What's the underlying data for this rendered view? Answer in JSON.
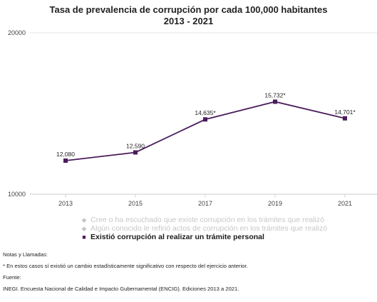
{
  "chart_data": {
    "type": "line",
    "title": "Tasa de prevalencia de corrupción por cada 100,000 habitantes",
    "subtitle": "2013 - 2021",
    "categories": [
      "2013",
      "2015",
      "2017",
      "2019",
      "2021"
    ],
    "series": [
      {
        "name": "Existió corrupción al realizar un trámite personal",
        "color": "#4b1c5c",
        "values": [
          12080,
          12590,
          14635,
          15732,
          14701
        ],
        "labels": [
          "12,080",
          "12,590",
          "14,635*",
          "15,732*",
          "14,701*"
        ]
      }
    ],
    "ylim": [
      10000,
      20000
    ],
    "yticks": [
      "10000",
      "20000"
    ],
    "grid": false,
    "legend_position": "bottom"
  },
  "legend": [
    {
      "label": "Cree o ha escuchado que existe corrupción en los trámites que realizó",
      "state": "hidden",
      "color": "#c7c7c7"
    },
    {
      "label": "Algún conocido le refirió actos de corrupción en los trámites que realizó",
      "state": "hidden",
      "color": "#c7c7c7"
    },
    {
      "label": "Existió corrupción al realizar un trámite personal",
      "state": "visible",
      "color": "#4b1c5c"
    }
  ],
  "notes": {
    "heading": "Notas y Llamadas:",
    "text": "* En estos casos sí existió un cambio estadísticamente significativo con respecto del ejercicio anterior.",
    "source_heading": "Fuente:",
    "source_text": "INEGI. Encuesta Nacional de Calidad e Impacto Gubernamental (ENCIG). Ediciones 2013 a 2021."
  }
}
